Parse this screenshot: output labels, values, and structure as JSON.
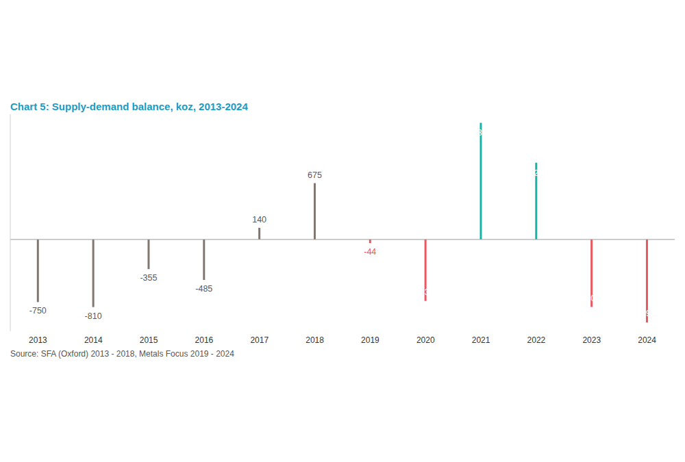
{
  "chart_data": {
    "type": "bar",
    "title": "Chart 5: Supply-demand balance, koz, 2013-2024",
    "source": "Source: SFA (Oxford) 2013 - 2018, Metals Focus 2019 - 2024",
    "categories": [
      "2013",
      "2014",
      "2015",
      "2016",
      "2017",
      "2018",
      "2019",
      "2020",
      "2021",
      "2022",
      "2023",
      "2024"
    ],
    "values": [
      -750,
      -810,
      -355,
      -485,
      140,
      675,
      -44,
      -737,
      1398,
      920,
      -809,
      -995
    ],
    "value_labels": [
      "-750",
      "-810",
      "-355",
      "-485",
      "140",
      "675",
      "-44",
      "-737",
      "1,398",
      "920",
      "-809",
      "-995"
    ],
    "colors": [
      "#7f7770",
      "#7f7770",
      "#7f7770",
      "#7f7770",
      "#7f7770",
      "#7f7770",
      "#e9575f",
      "#e9575f",
      "#16b3a8",
      "#16b3a8",
      "#e9575f",
      "#e9575f"
    ],
    "ylim": [
      -1100,
      1500
    ],
    "data_labels": true,
    "tick_labels": "x"
  }
}
